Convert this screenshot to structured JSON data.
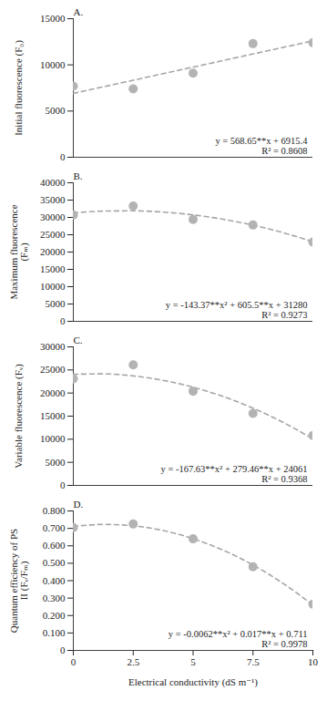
{
  "chart_data": [
    {
      "type": "scatter",
      "title": "A.",
      "y_label": "Initial fluorescence (F₀)",
      "x": [
        0,
        2.5,
        5,
        7.5,
        10
      ],
      "values": [
        7700,
        7400,
        9100,
        12300,
        12400
      ],
      "color": "#b3b3b3",
      "marker": "circle",
      "trend": {
        "line_style": "dashed",
        "color": "#a6a6a6",
        "x": [
          0,
          2.5,
          5,
          7.5,
          10
        ],
        "values": [
          6915,
          8337,
          9759,
          11180,
          12602
        ]
      },
      "equation": "y = 568.65**x + 6915.4",
      "r2": "R² = 0.8608",
      "xlim": [
        0,
        10
      ],
      "xticks": [
        0,
        2.5,
        5,
        7.5,
        10
      ],
      "ylim": [
        0,
        15000
      ],
      "yticks": [
        0,
        5000,
        10000,
        15000
      ],
      "tick_labels": "y"
    },
    {
      "type": "scatter",
      "title": "B.",
      "y_label": "Maximum fluorescence (Fₘ)",
      "x": [
        0,
        2.5,
        5,
        7.5,
        10
      ],
      "values": [
        30700,
        33300,
        29400,
        27800,
        22900
      ],
      "color": "#b3b3b3",
      "marker": "circle",
      "trend": {
        "line_style": "dashed",
        "color": "#a6a6a6",
        "x": [
          0,
          1.25,
          2.5,
          3.75,
          5,
          6.25,
          7.5,
          8.75,
          10
        ],
        "values": [
          31280,
          31813,
          31898,
          31535,
          30724,
          29464,
          27756,
          25601,
          22998
        ]
      },
      "equation": "y = -143.37**x² + 605.5**x + 31280",
      "r2": "R² = 0.9273",
      "xlim": [
        0,
        10
      ],
      "xticks": [
        0,
        2.5,
        5,
        7.5,
        10
      ],
      "ylim": [
        0,
        40000
      ],
      "yticks": [
        0,
        5000,
        10000,
        15000,
        20000,
        25000,
        30000,
        35000,
        40000
      ],
      "tick_labels": "y"
    },
    {
      "type": "scatter",
      "title": "C.",
      "y_label": "Variable fluorescence (Fᵥ)",
      "x": [
        0,
        2.5,
        5,
        7.5,
        10
      ],
      "values": [
        23100,
        26100,
        20400,
        15600,
        10800
      ],
      "color": "#b3b3b3",
      "marker": "circle",
      "trend": {
        "line_style": "dashed",
        "color": "#a6a6a6",
        "x": [
          0,
          1.25,
          2.5,
          3.75,
          5,
          6.25,
          7.5,
          8.75,
          10
        ],
        "values": [
          24061,
          24148,
          23712,
          22752,
          21267,
          19260,
          16728,
          13672,
          10093
        ]
      },
      "equation": "y = -167.63**x² + 279.46**x + 24061",
      "r2": "R² = 0.9368",
      "xlim": [
        0,
        10
      ],
      "xticks": [
        0,
        2.5,
        5,
        7.5,
        10
      ],
      "ylim": [
        0,
        30000
      ],
      "yticks": [
        0,
        5000,
        10000,
        15000,
        20000,
        25000,
        30000
      ],
      "tick_labels": "y"
    },
    {
      "type": "scatter",
      "title": "D.",
      "y_label": "Quantum efficiency of PS II (Fᵥ/Fₘ)",
      "x_label": "Electrical conductivity (dS m⁻¹)",
      "x": [
        0,
        2.5,
        5,
        7.5,
        10
      ],
      "values": [
        0.705,
        0.725,
        0.64,
        0.48,
        0.265
      ],
      "color": "#b3b3b3",
      "marker": "circle",
      "trend": {
        "line_style": "dashed",
        "color": "#a6a6a6",
        "x": [
          0,
          1.25,
          2.5,
          3.75,
          5,
          6.25,
          7.5,
          8.75,
          10
        ],
        "values": [
          0.711,
          0.7226,
          0.7148,
          0.6876,
          0.641,
          0.575,
          0.4898,
          0.385,
          0.261
        ]
      },
      "equation": "y = -0.0062**x² + 0.017**x + 0.711",
      "r2": "R² = 0.9978",
      "xlim": [
        0,
        10
      ],
      "xticks": [
        0,
        2.5,
        5,
        7.5,
        10
      ],
      "ylim": [
        0,
        0.8
      ],
      "yticks": [
        0,
        {
          "value": 0.1,
          "label": "0.100"
        },
        {
          "value": 0.2,
          "label": "0.200"
        },
        {
          "value": 0.3,
          "label": "0.300"
        },
        {
          "value": 0.4,
          "label": "0.400"
        },
        {
          "value": 0.5,
          "label": "0.500"
        },
        {
          "value": 0.6,
          "label": "0.600"
        },
        {
          "value": 0.7,
          "label": "0.700"
        },
        {
          "value": 0.8,
          "label": "0.800"
        }
      ]
    }
  ]
}
